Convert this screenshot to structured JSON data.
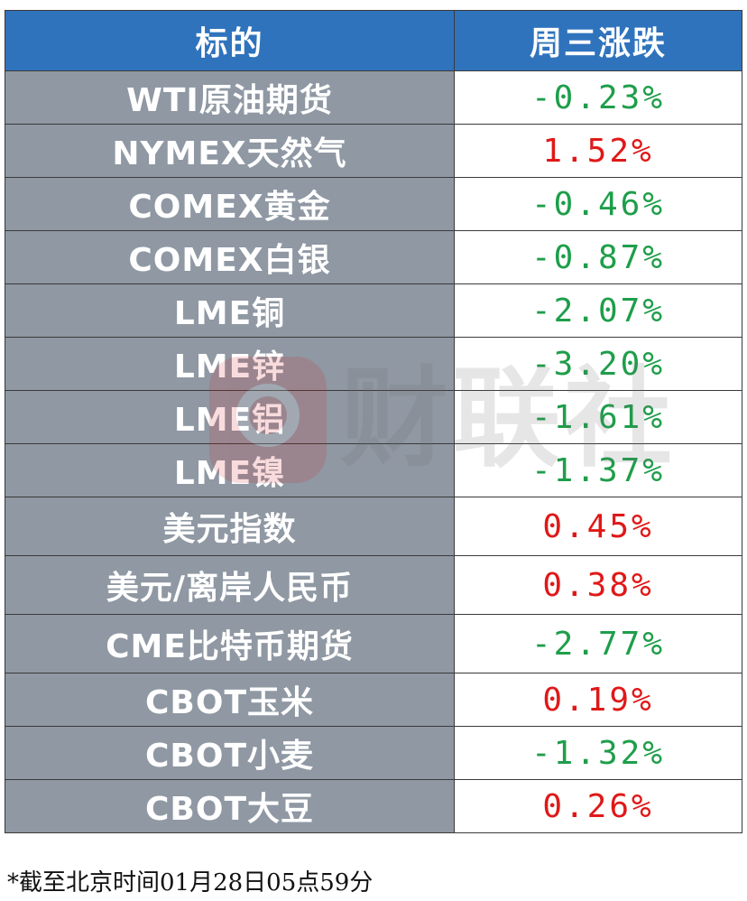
{
  "header": {
    "name_label": "标的",
    "change_label": "周三涨跌"
  },
  "rows": [
    {
      "name": "WTI原油期货",
      "change": "-0.23%"
    },
    {
      "name": "NYMEX天然气",
      "change": "1.52%"
    },
    {
      "name": "COMEX黄金",
      "change": "-0.46%"
    },
    {
      "name": "COMEX白银",
      "change": "-0.87%"
    },
    {
      "name": "LME铜",
      "change": "-2.07%"
    },
    {
      "name": "LME锌",
      "change": "-3.20%"
    },
    {
      "name": "LME铝",
      "change": "-1.61%"
    },
    {
      "name": "LME镍",
      "change": "-1.37%"
    },
    {
      "name": "美元指数",
      "change": "0.45%"
    },
    {
      "name": "美元/离岸人民币",
      "change": "0.38%"
    },
    {
      "name": "CME比特币期货",
      "change": "-2.77%"
    },
    {
      "name": "CBOT玉米",
      "change": "0.19%"
    },
    {
      "name": "CBOT小麦",
      "change": "-1.32%"
    },
    {
      "name": "CBOT大豆",
      "change": "0.26%"
    }
  ],
  "footnote": "*截至北京时间01月28日05点59分",
  "watermark": {
    "text": "财联社"
  },
  "colors": {
    "header_bg": "#2f73bd",
    "name_bg": "#8f98a3",
    "negative": "#1e9e4a",
    "positive": "#e01818"
  }
}
